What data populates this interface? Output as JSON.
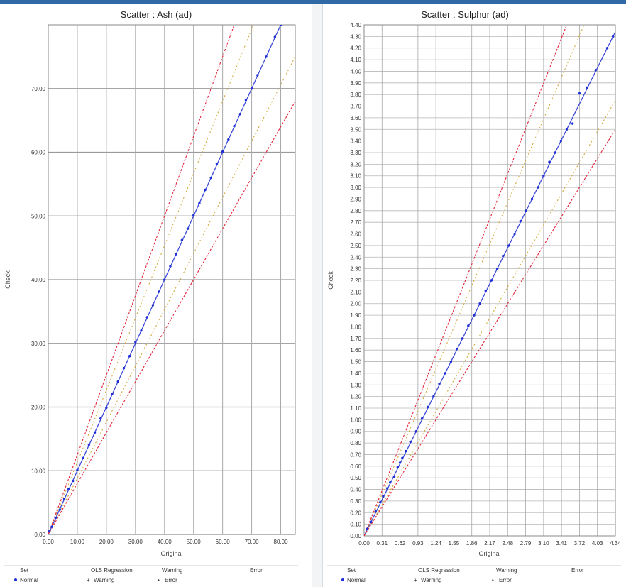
{
  "chart_data": [
    {
      "type": "scatter",
      "title": "Scatter :  Ash (ad)",
      "xlabel": "Original",
      "ylabel": "Check",
      "xlim": [
        0,
        85
      ],
      "ylim": [
        0,
        80
      ],
      "xticks": [
        0,
        10,
        20,
        30,
        40,
        50,
        60,
        70,
        80
      ],
      "xtick_labels": [
        "0.00",
        "10.00",
        "20.00",
        "30.00",
        "40.00",
        "50.00",
        "60.00",
        "70.00",
        "80.00"
      ],
      "yticks": [
        0,
        10,
        20,
        30,
        40,
        50,
        60,
        70
      ],
      "ytick_labels": [
        "0.00",
        "10.00",
        "20.00",
        "30.00",
        "40.00",
        "50.00",
        "60.00",
        "70.00"
      ],
      "lines": [
        {
          "name": "OLS Regression",
          "color": "#3b49d6",
          "style": "solid",
          "x": [
            0,
            85
          ],
          "y": [
            0,
            85
          ]
        },
        {
          "name": "Warning",
          "color": "#d3a93b",
          "style": "dotted",
          "x": [
            0,
            75
          ],
          "y": [
            0,
            85
          ]
        },
        {
          "name": "Warning",
          "color": "#d3a93b",
          "style": "dotted",
          "x": [
            0,
            85
          ],
          "y": [
            0,
            75
          ]
        },
        {
          "name": "Error",
          "color": "#e3253c",
          "style": "dashed",
          "x": [
            0,
            68
          ],
          "y": [
            0,
            85
          ]
        },
        {
          "name": "Error",
          "color": "#e3253c",
          "style": "dashed",
          "x": [
            0,
            85
          ],
          "y": [
            0,
            68
          ]
        }
      ],
      "series": [
        {
          "name": "Normal",
          "color": "#1f2fd6",
          "x": [
            0.4,
            1.2,
            2.5,
            4,
            5.5,
            7,
            8.5,
            10,
            12,
            14,
            16,
            18,
            20,
            22,
            24,
            26,
            28,
            30,
            32,
            34,
            36,
            38,
            40,
            42,
            44,
            46,
            48,
            50,
            52,
            54,
            56,
            58,
            60,
            62,
            64,
            66,
            68,
            70,
            72,
            75,
            78,
            80
          ],
          "y": [
            0.5,
            1.2,
            2.6,
            3.9,
            5.6,
            7.1,
            8.4,
            10.1,
            12.0,
            14.1,
            16.0,
            18.2,
            19.9,
            22.1,
            24.0,
            26.1,
            28.0,
            30.2,
            32.0,
            34.1,
            36.0,
            38.1,
            40.0,
            42.1,
            44.0,
            46.2,
            48.0,
            50.1,
            52.0,
            54.1,
            56.0,
            58.2,
            60.1,
            62.0,
            64.1,
            66.0,
            68.2,
            70.0,
            72.1,
            75.0,
            78.1,
            80.0
          ]
        }
      ],
      "legend": {
        "col1_header": "Set",
        "col1_item": "Normal",
        "col2_header": "OLS Regression",
        "col2_item": "Warning",
        "col3_header": "Warning",
        "col3_item": "Error",
        "col4_header": "Error"
      }
    },
    {
      "type": "scatter",
      "title": "Scatter :  Sulphur (ad)",
      "xlabel": "Original",
      "ylabel": "Check",
      "xlim": [
        0,
        4.34
      ],
      "ylim": [
        0,
        4.4
      ],
      "xticks": [
        0,
        0.31,
        0.62,
        0.93,
        1.24,
        1.55,
        1.86,
        2.17,
        2.48,
        2.79,
        3.1,
        3.41,
        3.72,
        4.03,
        4.34
      ],
      "xtick_labels": [
        "0.00",
        "0.31",
        "0.62",
        "0.93",
        "1.24",
        "1.55",
        "1.86",
        "2.17",
        "2.48",
        "2.79",
        "3.10",
        "3.41",
        "3.72",
        "4.03",
        "4.34"
      ],
      "yticks_step": 0.1,
      "ytick_labels": [
        "0.00",
        "0.10",
        "0.20",
        "0.30",
        "0.40",
        "0.50",
        "0.60",
        "0.70",
        "0.80",
        "0.90",
        "1.00",
        "1.10",
        "1.20",
        "1.30",
        "1.40",
        "1.50",
        "1.60",
        "1.70",
        "1.80",
        "1.90",
        "2.00",
        "2.10",
        "2.20",
        "2.30",
        "2.40",
        "2.50",
        "2.60",
        "2.70",
        "2.80",
        "2.90",
        "3.00",
        "3.10",
        "3.20",
        "3.30",
        "3.40",
        "3.50",
        "3.60",
        "3.70",
        "3.80",
        "3.90",
        "4.00",
        "4.10",
        "4.20",
        "4.30",
        "4.40"
      ],
      "lines": [
        {
          "name": "OLS Regression",
          "color": "#3b49d6",
          "style": "solid",
          "x": [
            0,
            4.34
          ],
          "y": [
            0,
            4.34
          ]
        },
        {
          "name": "Warning",
          "color": "#d3a93b",
          "style": "dotted",
          "x": [
            0,
            3.8
          ],
          "y": [
            0,
            4.4
          ]
        },
        {
          "name": "Warning",
          "color": "#d3a93b",
          "style": "dotted",
          "x": [
            0,
            4.34
          ],
          "y": [
            0,
            3.75
          ]
        },
        {
          "name": "Error",
          "color": "#e3253c",
          "style": "dashed",
          "x": [
            0,
            3.5
          ],
          "y": [
            0,
            4.4
          ]
        },
        {
          "name": "Error",
          "color": "#e3253c",
          "style": "dashed",
          "x": [
            0,
            4.34
          ],
          "y": [
            0,
            3.5
          ]
        }
      ],
      "series": [
        {
          "name": "Normal",
          "color": "#1f2fd6",
          "x": [
            0.05,
            0.12,
            0.2,
            0.28,
            0.33,
            0.4,
            0.45,
            0.52,
            0.58,
            0.62,
            0.66,
            0.72,
            0.8,
            0.9,
            1.0,
            1.1,
            1.2,
            1.3,
            1.4,
            1.5,
            1.6,
            1.7,
            1.8,
            1.9,
            2.0,
            2.1,
            2.2,
            2.3,
            2.4,
            2.5,
            2.6,
            2.7,
            2.8,
            2.9,
            3.0,
            3.1,
            3.2,
            3.3,
            3.4,
            3.5,
            3.6,
            3.72,
            3.85,
            4.0,
            4.2,
            4.3
          ],
          "y": [
            0.06,
            0.12,
            0.21,
            0.29,
            0.34,
            0.41,
            0.46,
            0.51,
            0.59,
            0.63,
            0.67,
            0.73,
            0.81,
            0.9,
            1.01,
            1.11,
            1.2,
            1.31,
            1.4,
            1.5,
            1.61,
            1.7,
            1.81,
            1.9,
            2.0,
            2.11,
            2.2,
            2.3,
            2.41,
            2.5,
            2.6,
            2.71,
            2.8,
            2.9,
            3.0,
            3.1,
            3.22,
            3.3,
            3.4,
            3.5,
            3.55,
            3.81,
            3.86,
            4.01,
            4.2,
            4.3
          ]
        }
      ],
      "legend": {
        "col1_header": "Set",
        "col1_item": "Normal",
        "col2_header": "OLS Regression",
        "col2_item": "Warning",
        "col3_header": "Warning",
        "col3_item": "Error",
        "col4_header": "Error"
      }
    }
  ]
}
